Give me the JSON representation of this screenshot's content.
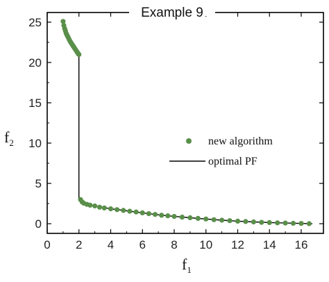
{
  "chart_data": {
    "type": "scatter",
    "title": "Example 9",
    "xlabel": {
      "main": "f",
      "sub": "1"
    },
    "ylabel": {
      "main": "f",
      "sub": "2"
    },
    "xlim": [
      0,
      17.4
    ],
    "ylim": [
      -1.2,
      26.2
    ],
    "x_ticks": [
      0,
      2,
      4,
      6,
      8,
      10,
      12,
      14,
      16
    ],
    "y_ticks": [
      0,
      5,
      10,
      15,
      20,
      25
    ],
    "grid": false,
    "legend_position": "right",
    "colors": {
      "marker": "#5a8f4a",
      "line": "#000000"
    },
    "series": [
      {
        "name": "new algorithm",
        "kind": "markers",
        "points": [
          [
            1.0,
            25.1
          ],
          [
            1.05,
            24.6
          ],
          [
            1.1,
            24.2
          ],
          [
            1.15,
            23.9
          ],
          [
            1.2,
            23.6
          ],
          [
            1.25,
            23.4
          ],
          [
            1.3,
            23.2
          ],
          [
            1.35,
            23.0
          ],
          [
            1.4,
            22.8
          ],
          [
            1.45,
            22.6
          ],
          [
            1.5,
            22.45
          ],
          [
            1.55,
            22.3
          ],
          [
            1.6,
            22.15
          ],
          [
            1.65,
            22.0
          ],
          [
            1.7,
            21.85
          ],
          [
            1.75,
            21.7
          ],
          [
            1.8,
            21.55
          ],
          [
            1.85,
            21.4
          ],
          [
            1.9,
            21.25
          ],
          [
            1.95,
            21.1
          ],
          [
            2.0,
            21.0
          ],
          [
            2.1,
            3.0
          ],
          [
            2.2,
            2.7
          ],
          [
            2.3,
            2.55
          ],
          [
            2.5,
            2.4
          ],
          [
            2.7,
            2.3
          ],
          [
            3.0,
            2.2
          ],
          [
            3.3,
            2.05
          ],
          [
            3.6,
            1.95
          ],
          [
            4.0,
            1.85
          ],
          [
            4.4,
            1.75
          ],
          [
            4.8,
            1.65
          ],
          [
            5.2,
            1.55
          ],
          [
            5.6,
            1.45
          ],
          [
            6.0,
            1.35
          ],
          [
            6.4,
            1.25
          ],
          [
            6.8,
            1.15
          ],
          [
            7.2,
            1.05
          ],
          [
            7.6,
            0.98
          ],
          [
            8.0,
            0.9
          ],
          [
            8.5,
            0.82
          ],
          [
            9.0,
            0.74
          ],
          [
            9.5,
            0.66
          ],
          [
            10.0,
            0.58
          ],
          [
            10.5,
            0.5
          ],
          [
            11.0,
            0.44
          ],
          [
            11.5,
            0.38
          ],
          [
            12.0,
            0.32
          ],
          [
            12.5,
            0.27
          ],
          [
            13.0,
            0.22
          ],
          [
            13.5,
            0.17
          ],
          [
            14.0,
            0.14
          ],
          [
            14.5,
            0.11
          ],
          [
            15.0,
            0.08
          ],
          [
            15.5,
            0.05
          ],
          [
            16.0,
            0.03
          ],
          [
            16.5,
            0.01
          ]
        ]
      },
      {
        "name": "optimal PF",
        "kind": "line",
        "points": [
          [
            1.0,
            25.1
          ],
          [
            1.1,
            24.2
          ],
          [
            1.2,
            23.6
          ],
          [
            1.3,
            23.2
          ],
          [
            1.4,
            22.8
          ],
          [
            1.5,
            22.45
          ],
          [
            1.6,
            22.15
          ],
          [
            1.7,
            21.85
          ],
          [
            1.8,
            21.55
          ],
          [
            1.9,
            21.25
          ],
          [
            2.0,
            21.0
          ],
          [
            2.0,
            3.0
          ],
          [
            2.2,
            2.7
          ],
          [
            2.5,
            2.4
          ],
          [
            3.0,
            2.2
          ],
          [
            4.0,
            1.85
          ],
          [
            5.0,
            1.6
          ],
          [
            6.0,
            1.35
          ],
          [
            7.0,
            1.1
          ],
          [
            8.0,
            0.9
          ],
          [
            9.0,
            0.74
          ],
          [
            10.0,
            0.58
          ],
          [
            11.0,
            0.44
          ],
          [
            12.0,
            0.32
          ],
          [
            13.0,
            0.22
          ],
          [
            14.0,
            0.14
          ],
          [
            15.0,
            0.08
          ],
          [
            16.0,
            0.03
          ],
          [
            16.7,
            0.0
          ]
        ]
      }
    ]
  }
}
